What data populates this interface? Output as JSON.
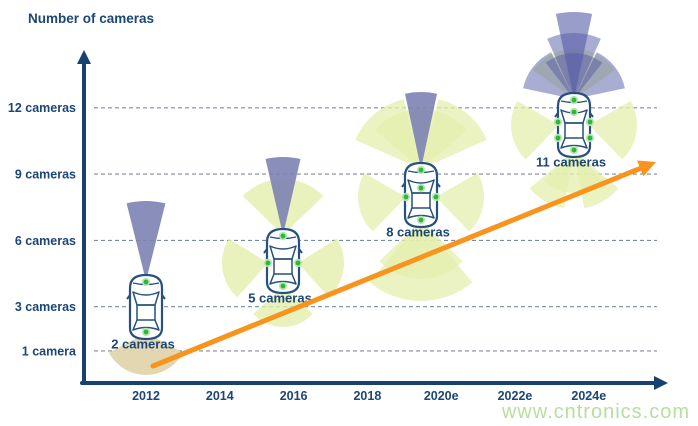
{
  "watermark": "www.cntronics.com",
  "colors": {
    "navy": "#1b4677",
    "axis": "#17416e",
    "grid": "#7d8ba0",
    "orange": "#f7941e",
    "purple_cone": "#7d82b3",
    "purple_layer": "#555ca6",
    "green_cone": "#e4efad",
    "tan_cone": "#e2d5ae",
    "dot_green": "#2eb63c",
    "dot_halo": "#b5e6ae",
    "car_outline": "#27507f",
    "watermark_green": "#b6df9d"
  },
  "chart_data": {
    "type": "scatter",
    "title": "Number of cameras",
    "ylabel": "Number of cameras",
    "xlabel": "",
    "x_ticks": [
      "2012",
      "2014",
      "2016",
      "2018",
      "2020e",
      "2022e",
      "2024e"
    ],
    "y_ticks": [
      {
        "label": "1 camera",
        "value": 1
      },
      {
        "label": "3 cameras",
        "value": 3
      },
      {
        "label": "6 cameras",
        "value": 6
      },
      {
        "label": "9 cameras",
        "value": 9
      },
      {
        "label": "12 cameras",
        "value": 12
      }
    ],
    "ylim": [
      0,
      14
    ],
    "grid": "horizontal-dashed",
    "legend": "none",
    "points": [
      {
        "year": "2012",
        "cameras": 2,
        "label": "2 cameras",
        "sensors": [
          "front-camera",
          "rear-camera"
        ]
      },
      {
        "year": "2016",
        "cameras": 5,
        "label": "5 cameras",
        "sensors": [
          "front-long-range-camera",
          "front-wide-camera",
          "left-surround-camera",
          "right-surround-camera",
          "rear-camera"
        ]
      },
      {
        "year": "2019",
        "cameras": 8,
        "label": "8 cameras",
        "sensors": [
          "front-long-range-camera",
          "front-wide-camera",
          "front-left-camera",
          "front-right-camera",
          "left-surround-camera",
          "right-surround-camera",
          "rear-left-camera",
          "rear-camera"
        ]
      },
      {
        "year": "2023",
        "cameras": 11,
        "label": "11 cameras",
        "sensors": [
          "front-long-range-camera",
          "front-mid-range-camera",
          "front-wide-camera",
          "front-left-fan-camera",
          "front-right-fan-camera",
          "surround-front-camera",
          "left-surround-camera",
          "right-surround-camera",
          "rear-left-camera",
          "rear-right-camera",
          "rear-camera"
        ]
      }
    ],
    "trend": {
      "direction": "increasing",
      "style": "orange-arrow"
    }
  }
}
